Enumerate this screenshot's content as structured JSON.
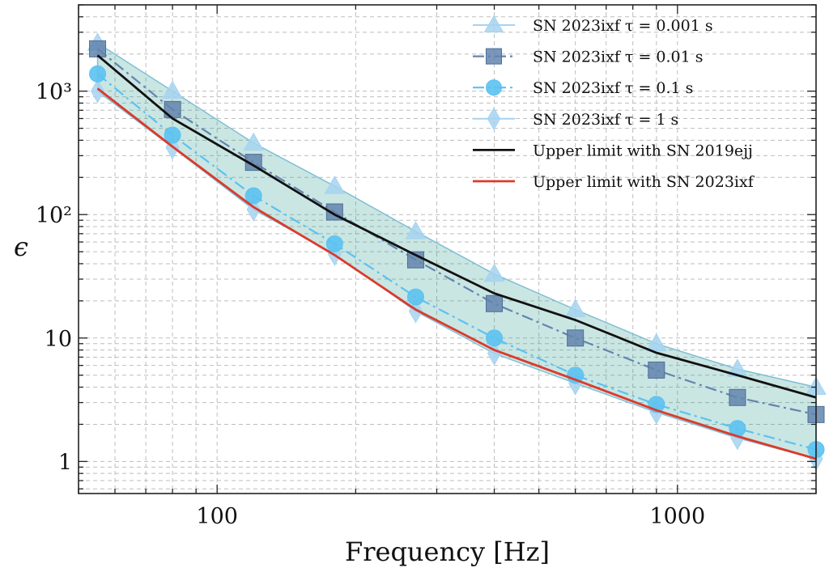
{
  "chart_data": {
    "type": "line",
    "xlabel": "Frequency [Hz]",
    "ylabel": "ϵ",
    "xscale": "log",
    "yscale": "log",
    "xlim": [
      50,
      2000
    ],
    "ylim": [
      0.55,
      5000
    ],
    "x_ticks": [
      {
        "value": 100,
        "label": "100"
      },
      {
        "value": 1000,
        "label": "1000"
      }
    ],
    "y_ticks": [
      {
        "value": 1,
        "label": "1"
      },
      {
        "value": 10,
        "label": "10"
      },
      {
        "value": 100,
        "label": "10²"
      },
      {
        "value": 1000,
        "label": "10³"
      }
    ],
    "grid": true,
    "legend_position": "top-right",
    "x": [
      55,
      80,
      120,
      180,
      270,
      400,
      600,
      900,
      1350,
      2000
    ],
    "series": [
      {
        "name": "SN 2023ixf τ = 0.001 s",
        "marker": "triangle",
        "line": "none",
        "color": "#a6d3f0",
        "values": [
          2450,
          1000,
          380,
          170,
          73,
          33,
          17,
          9,
          5.6,
          4
        ]
      },
      {
        "name": "SN 2023ixf τ = 0.01 s",
        "marker": "square",
        "line": "dashdot",
        "color": "#6384ad",
        "values": [
          2200,
          710,
          265,
          105,
          43,
          19,
          10,
          5.5,
          3.3,
          2.4
        ]
      },
      {
        "name": "SN 2023ixf τ = 0.1 s",
        "marker": "circle",
        "line": "dashdot",
        "color": "#5bc2f1",
        "values": [
          1380,
          440,
          142,
          58,
          21.5,
          10,
          5,
          2.9,
          1.85,
          1.25
        ]
      },
      {
        "name": "SN 2023ixf τ = 1 s",
        "marker": "diamond",
        "line": "none",
        "color": "#a6d3f0",
        "values": [
          1000,
          350,
          110,
          48,
          16.5,
          7.5,
          4.3,
          2.5,
          1.55,
          1.05
        ]
      },
      {
        "name": "Upper limit with SN 2019ejj",
        "marker": "none",
        "line": "solid",
        "color": "#111111",
        "values": [
          1950,
          600,
          250,
          100,
          47,
          23,
          14,
          7.6,
          5,
          3.3
        ]
      },
      {
        "name": "Upper limit with SN 2023ixf",
        "marker": "none",
        "line": "solid",
        "color": "#dc3a2c",
        "values": [
          1050,
          355,
          115,
          47,
          17,
          8,
          4.6,
          2.6,
          1.6,
          1.05
        ]
      }
    ],
    "band": {
      "upper_series": 0,
      "lower_series": 3,
      "color": "#2a9d8f"
    }
  }
}
